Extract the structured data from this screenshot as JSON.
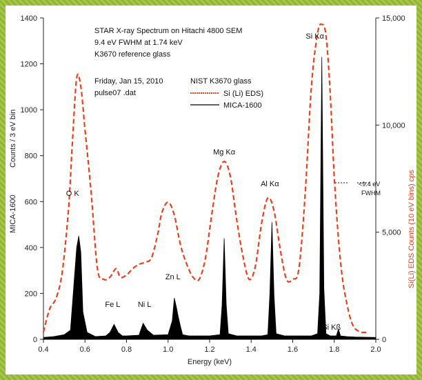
{
  "chart_data": {
    "type": "area",
    "title_lines": [
      "STAR X-ray Spectrum on Hitachi 4800 SEM",
      "9.4 eV FWHM at 1.74 keV",
      "K3670 reference glass"
    ],
    "date_lines": [
      "Friday, Jan 15, 2010",
      "pulse07 .dat"
    ],
    "legend": {
      "title": "NIST K3670 glass",
      "entries": [
        "Si (Li) EDS)",
        "MICA-1600"
      ]
    },
    "xlabel": "Energy (keV)",
    "ylabel_left": [
      "MICA-1600",
      "Counts / 3 eV bin"
    ],
    "ylabel_right": "Si(Li) EDS Counts (10 eV bins) cps",
    "xlim": [
      0.4,
      2.0
    ],
    "ylim_left": [
      0,
      1400
    ],
    "ylim_right": [
      0,
      15000
    ],
    "x_ticks": [
      "0.4",
      "0.6",
      "0.8",
      "1.0",
      "1.2",
      "1.4",
      "1.6",
      "1.8",
      "2.0"
    ],
    "y_left_ticks": [
      "0",
      "200",
      "400",
      "600",
      "800",
      "1000",
      "1200",
      "1400"
    ],
    "y_right_ticks": [
      "0",
      "5,000",
      "10,000",
      "15,000"
    ],
    "series": [
      {
        "name": "Si (Li) EDS)",
        "axis": "right",
        "color": "#e8401c",
        "style": "dashed",
        "x": [
          0.4,
          0.43,
          0.46,
          0.49,
          0.52,
          0.54,
          0.56,
          0.58,
          0.6,
          0.63,
          0.66,
          0.69,
          0.72,
          0.75,
          0.77,
          0.8,
          0.83,
          0.86,
          0.89,
          0.92,
          0.95,
          0.97,
          1.0,
          1.03,
          1.06,
          1.09,
          1.12,
          1.15,
          1.18,
          1.21,
          1.24,
          1.27,
          1.3,
          1.33,
          1.36,
          1.39,
          1.42,
          1.45,
          1.48,
          1.51,
          1.54,
          1.57,
          1.6,
          1.63,
          1.66,
          1.69,
          1.72,
          1.74,
          1.76,
          1.78,
          1.8,
          1.82,
          1.84,
          1.86,
          1.88,
          1.9,
          1.93,
          1.96
        ],
        "y": [
          330,
          1420,
          1900,
          3100,
          6000,
          9300,
          12200,
          11800,
          9800,
          6800,
          3300,
          2800,
          2900,
          3300,
          2900,
          3000,
          3300,
          3500,
          3600,
          3800,
          4900,
          5900,
          6400,
          5800,
          4400,
          3500,
          2900,
          2800,
          3800,
          5800,
          7600,
          8300,
          7600,
          5600,
          3900,
          2800,
          3400,
          5400,
          6600,
          6000,
          4200,
          2800,
          2800,
          3300,
          6800,
          11800,
          14300,
          14700,
          14200,
          11600,
          7600,
          4700,
          2800,
          1700,
          900,
          500,
          330,
          330
        ]
      },
      {
        "name": "MICA-1600",
        "axis": "left",
        "color": "#000000",
        "style": "filled",
        "x": [
          0.4,
          0.45,
          0.5,
          0.53,
          0.55,
          0.56,
          0.57,
          0.58,
          0.59,
          0.61,
          0.65,
          0.7,
          0.72,
          0.74,
          0.76,
          0.78,
          0.8,
          0.86,
          0.88,
          0.9,
          0.93,
          1.0,
          1.02,
          1.03,
          1.04,
          1.05,
          1.06,
          1.07,
          1.1,
          1.2,
          1.25,
          1.26,
          1.27,
          1.28,
          1.29,
          1.33,
          1.45,
          1.48,
          1.49,
          1.5,
          1.51,
          1.52,
          1.56,
          1.69,
          1.72,
          1.73,
          1.74,
          1.75,
          1.76,
          1.78,
          1.81,
          1.82,
          1.83,
          1.86,
          1.9,
          2.0
        ],
        "y": [
          8,
          12,
          20,
          40,
          280,
          400,
          450,
          380,
          120,
          30,
          12,
          15,
          30,
          65,
          30,
          15,
          15,
          18,
          70,
          40,
          18,
          20,
          80,
          180,
          140,
          95,
          55,
          20,
          15,
          15,
          20,
          150,
          440,
          150,
          25,
          15,
          15,
          20,
          200,
          510,
          190,
          25,
          15,
          15,
          25,
          200,
          1230,
          220,
          25,
          15,
          15,
          45,
          15,
          12,
          10,
          8
        ]
      }
    ],
    "annotations": [
      {
        "text": "O K",
        "x": 0.56
      },
      {
        "text": "Fe L",
        "x": 0.74
      },
      {
        "text": "Ni L",
        "x": 0.88
      },
      {
        "text": "Zn L",
        "x": 1.03
      },
      {
        "text": "Mg Kα",
        "x": 1.27
      },
      {
        "text": "Al Kα",
        "x": 1.49
      },
      {
        "text": "Si Kα",
        "x": 1.74
      },
      {
        "text": "Si Kß",
        "x": 1.82
      }
    ],
    "fwhm_label": [
      "<9.4 eV",
      "FWHM"
    ],
    "grid": false
  }
}
